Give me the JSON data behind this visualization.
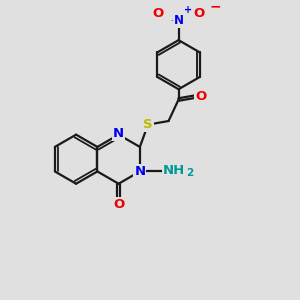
{
  "bg_color": "#e0e0e0",
  "bond_color": "#1a1a1a",
  "bond_width": 1.6,
  "atom_colors": {
    "N": "#0000ee",
    "O": "#ee0000",
    "S": "#bbbb00",
    "NH_color": "#009999",
    "C": "#1a1a1a"
  },
  "font_size": 9.5
}
